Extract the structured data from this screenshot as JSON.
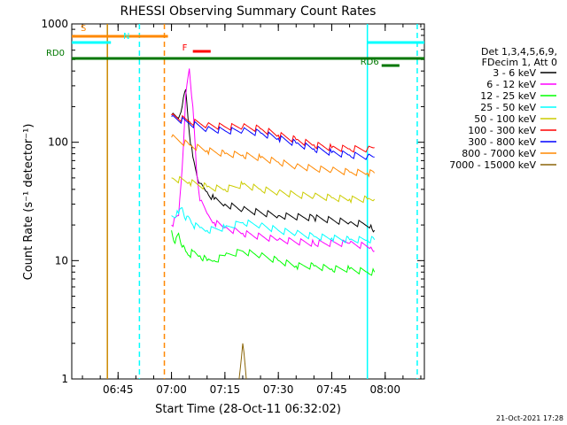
{
  "chart_data": {
    "type": "line",
    "title": "RHESSI Observing Summary Count Rates",
    "xlabel": "Start Time (28-Oct-11 06:32:02)",
    "ylabel": "Count Rate (s⁻¹ detector⁻¹)",
    "y_scale": "log",
    "ylim": [
      1,
      1000
    ],
    "xlim": [
      "06:32",
      "08:11"
    ],
    "x_ticks": [
      "06:45",
      "07:00",
      "07:15",
      "07:30",
      "07:45",
      "08:00"
    ],
    "y_ticks": [
      "1",
      "10",
      "100",
      "1000"
    ],
    "grid": false,
    "legend_position": "right",
    "legend_header": [
      "Det 1,3,4,5,6,9,",
      "FDecim 1, Att 0"
    ],
    "series": [
      {
        "name": "3 - 6 keV",
        "color": "#000000",
        "x": [
          "07:00",
          "07:02",
          "07:03",
          "07:04",
          "07:05",
          "07:06",
          "07:07",
          "07:08",
          "07:10",
          "07:12",
          "07:15",
          "07:20",
          "07:30",
          "07:40",
          "07:50",
          "07:56",
          "07:57"
        ],
        "y": [
          170,
          160,
          200,
          280,
          120,
          75,
          55,
          45,
          38,
          33,
          30,
          27,
          24,
          23,
          21,
          20,
          18
        ]
      },
      {
        "name": "6 - 12 keV",
        "color": "#ff00ff",
        "x": [
          "07:00",
          "07:02",
          "07:03",
          "07:04",
          "07:05",
          "07:06",
          "07:07",
          "07:08",
          "07:10",
          "07:12",
          "07:15",
          "07:20",
          "07:30",
          "07:40",
          "07:50",
          "07:56",
          "07:57"
        ],
        "y": [
          20,
          24,
          60,
          250,
          420,
          200,
          60,
          32,
          25,
          21,
          19,
          17,
          15,
          14,
          14,
          13,
          12
        ]
      },
      {
        "name": "12 - 25 keV",
        "color": "#00ff00",
        "x": [
          "07:00",
          "07:01",
          "07:02",
          "07:03",
          "07:04",
          "07:05",
          "07:06",
          "07:08",
          "07:10",
          "07:12",
          "07:15",
          "07:20",
          "07:25",
          "07:30",
          "07:35",
          "07:40",
          "07:45",
          "07:50",
          "07:55",
          "07:57"
        ],
        "y": [
          18,
          14,
          17,
          13,
          12,
          11,
          12,
          11,
          10,
          10,
          11,
          12,
          11,
          10,
          9,
          9,
          8.5,
          8.5,
          8,
          8
        ]
      },
      {
        "name": "25 - 50 keV",
        "color": "#00ffff",
        "x": [
          "07:00",
          "07:02",
          "07:03",
          "07:04",
          "07:05",
          "07:06",
          "07:08",
          "07:10",
          "07:15",
          "07:20",
          "07:25",
          "07:30",
          "07:35",
          "07:40",
          "07:45",
          "07:50",
          "07:55",
          "07:57"
        ],
        "y": [
          24,
          25,
          28,
          22,
          23,
          20,
          19,
          18,
          19,
          21,
          20,
          18,
          17,
          16,
          15.5,
          15,
          15,
          15
        ]
      },
      {
        "name": "50 - 100 keV",
        "color": "#cccc00",
        "x": [
          "07:00",
          "07:05",
          "07:10",
          "07:15",
          "07:20",
          "07:25",
          "07:30",
          "07:35",
          "07:40",
          "07:45",
          "07:50",
          "07:55",
          "07:57"
        ],
        "y": [
          50,
          46,
          42,
          40,
          44,
          40,
          38,
          36,
          35,
          34,
          33,
          33,
          33
        ]
      },
      {
        "name": "100 - 300 keV",
        "color": "#ff0000",
        "x": [
          "07:00",
          "07:05",
          "07:10",
          "07:15",
          "07:20",
          "07:25",
          "07:30",
          "07:35",
          "07:40",
          "07:45",
          "07:50",
          "07:55",
          "07:57"
        ],
        "y": [
          170,
          150,
          140,
          135,
          135,
          130,
          115,
          105,
          95,
          90,
          88,
          88,
          90
        ]
      },
      {
        "name": "300 - 800 keV",
        "color": "#0000ff",
        "x": [
          "07:00",
          "07:05",
          "07:10",
          "07:15",
          "07:20",
          "07:25",
          "07:30",
          "07:35",
          "07:40",
          "07:45",
          "07:50",
          "07:55",
          "07:57"
        ],
        "y": [
          165,
          145,
          130,
          125,
          125,
          120,
          108,
          98,
          88,
          82,
          78,
          76,
          75
        ]
      },
      {
        "name": "800 - 7000 keV",
        "color": "#ff8800",
        "x": [
          "07:00",
          "07:05",
          "07:10",
          "07:15",
          "07:20",
          "07:25",
          "07:30",
          "07:35",
          "07:40",
          "07:45",
          "07:50",
          "07:55",
          "07:57"
        ],
        "y": [
          110,
          95,
          85,
          80,
          78,
          74,
          68,
          63,
          60,
          58,
          56,
          55,
          55
        ]
      },
      {
        "name": "7000 - 15000 keV",
        "color": "#8b6508",
        "x": [
          "07:19",
          "07:20",
          "07:21"
        ],
        "y": [
          1,
          2,
          1
        ]
      }
    ],
    "flags": [
      {
        "label": "S",
        "color": "#ff8800",
        "from": "06:32",
        "to": "06:59"
      },
      {
        "label": "N",
        "color": "#00ffff",
        "from": "06:32",
        "to": "06:43"
      },
      {
        "label": "N",
        "color": "#00ffff",
        "from": "07:55",
        "to": "08:11"
      },
      {
        "label": "F",
        "color": "#ff0000",
        "from": "07:06",
        "to": "07:11"
      },
      {
        "label": "RD0",
        "color": "#007700",
        "from": "06:32",
        "to": "08:11"
      },
      {
        "label": "RD6",
        "color": "#007700",
        "from": "07:59",
        "to": "08:04"
      }
    ],
    "vertical_markers": [
      {
        "time": "06:42",
        "color": "#cc8800",
        "style": "solid"
      },
      {
        "time": "06:51",
        "color": "#00ffff",
        "style": "dashed"
      },
      {
        "time": "06:58",
        "color": "#ff8800",
        "style": "dashed"
      },
      {
        "time": "07:55",
        "color": "#00ffff",
        "style": "solid"
      },
      {
        "time": "08:09",
        "color": "#00ffff",
        "style": "dashed"
      }
    ],
    "timestamp": "21-Oct-2021 17:28"
  }
}
